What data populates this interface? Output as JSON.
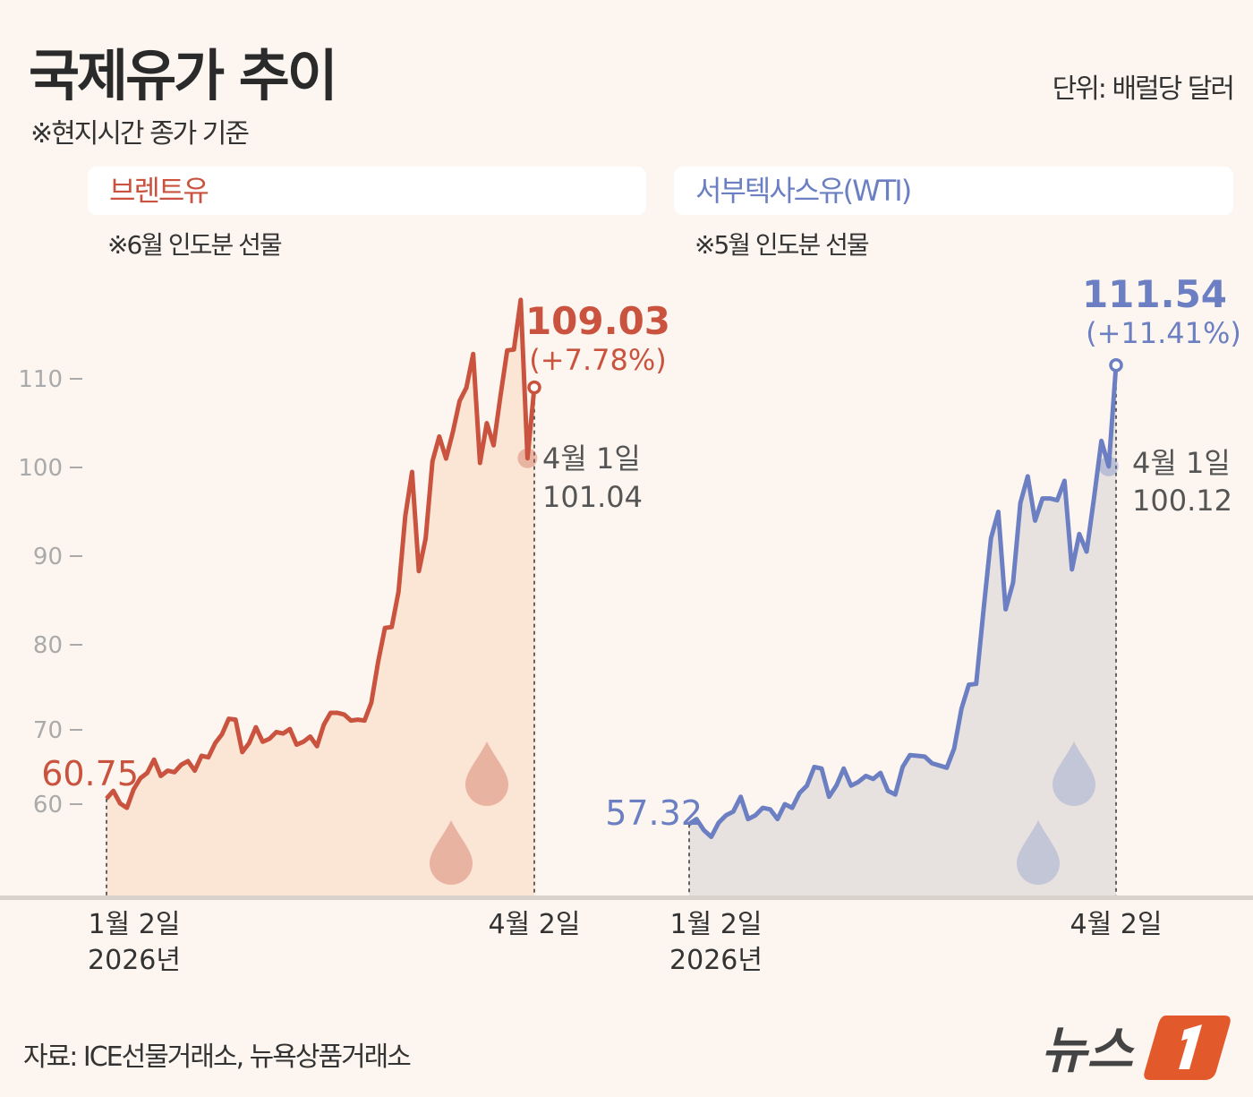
{
  "header": {
    "title": "국제유가 추이",
    "subtitle": "※현지시간 종가 기준",
    "unit": "단위: 배럴당 달러"
  },
  "panels": [
    {
      "name": "브렌트유",
      "note": "※6월 인도분 선물",
      "start_label": "60.75",
      "end_value": "109.03",
      "end_change": "(+7.78%)",
      "prev_date": "4월 1일",
      "prev_value": "101.04",
      "x_start": "1월 2일",
      "x_start_year": "2026년",
      "x_end": "4월 2일"
    },
    {
      "name": "서부텍사스유(WTI)",
      "note": "※5월 인도분 선물",
      "start_label": "57.32",
      "end_value": "111.54",
      "end_change": "(+11.41%)",
      "prev_date": "4월 1일",
      "prev_value": "100.12",
      "x_start": "1월 2일",
      "x_start_year": "2026년",
      "x_end": "4월 2일"
    }
  ],
  "footer": {
    "source": "자료: ICE선물거래소, 뉴욕상품거래소",
    "logo": "뉴스1"
  },
  "colors": {
    "background": "#fdf6f0",
    "brent": "#c9533f",
    "brent_fill": "#fbe6d6",
    "wti": "#6b7fc2",
    "wti_fill": "#e7e2df",
    "drop_brent": "#e9b3a2",
    "drop_wti": "#c3c6d6",
    "logo_orange": "#e25a2b"
  },
  "chart_data": [
    {
      "type": "area",
      "title": "브렌트유",
      "x_range": [
        "2026-01-02",
        "2026-04-02"
      ],
      "yticks": [
        60,
        70,
        80,
        90,
        100,
        110
      ],
      "ylabel": "",
      "grid": false,
      "values": [
        60.75,
        61.8,
        60.1,
        59.5,
        62.0,
        63.5,
        64.2,
        66.0,
        63.8,
        64.5,
        64.3,
        65.3,
        65.8,
        64.5,
        66.5,
        66.3,
        68.2,
        69.4,
        71.3,
        71.2,
        67.0,
        68.2,
        70.3,
        68.4,
        68.8,
        69.7,
        69.5,
        70.1,
        68.0,
        68.4,
        69.1,
        67.8,
        70.6,
        72.0,
        72.0,
        71.8,
        71.1,
        71.2,
        71.1,
        73.2,
        78.0,
        81.9,
        82.0,
        86.0,
        94.5,
        99.5,
        88.3,
        92.0,
        100.7,
        103.5,
        101.0,
        104.0,
        107.5,
        109.0,
        112.8,
        100.5,
        105.0,
        102.5,
        108.0,
        113.2,
        113.3,
        118.9,
        101.04,
        109.03
      ],
      "annotations": [
        {
          "date": "4월 1일",
          "value": 101.04
        },
        {
          "date": "4월 2일",
          "value": 109.03,
          "change": "+7.78%"
        }
      ]
    },
    {
      "type": "area",
      "title": "서부텍사스유(WTI)",
      "x_range": [
        "2026-01-02",
        "2026-04-02"
      ],
      "yticks": [
        60,
        70,
        80,
        90,
        100,
        110
      ],
      "ylabel": "",
      "grid": false,
      "values": [
        57.32,
        58.0,
        56.5,
        55.6,
        57.5,
        58.5,
        59.0,
        61.0,
        58.0,
        58.5,
        59.5,
        59.3,
        58.0,
        60.0,
        59.5,
        61.5,
        62.5,
        65.0,
        64.8,
        61.0,
        62.5,
        64.8,
        62.5,
        63.0,
        63.8,
        63.4,
        64.2,
        61.8,
        61.3,
        65.0,
        66.6,
        66.5,
        66.4,
        65.5,
        65.2,
        64.9,
        67.5,
        72.5,
        75.3,
        75.4,
        84.0,
        92.0,
        95.0,
        84.0,
        87.0,
        96.0,
        99.0,
        94.0,
        96.5,
        96.5,
        96.3,
        98.5,
        88.5,
        92.5,
        90.5,
        96.5,
        103.0,
        100.12,
        111.54
      ],
      "annotations": [
        {
          "date": "4월 1일",
          "value": 100.12
        },
        {
          "date": "4월 2일",
          "value": 111.54,
          "change": "+11.41%"
        }
      ]
    }
  ]
}
